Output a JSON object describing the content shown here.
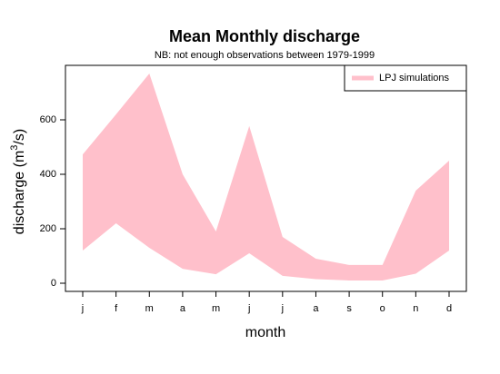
{
  "chart_data": {
    "type": "band",
    "title": "Mean Monthly discharge",
    "subtitle": "NB: not enough observations between 1979-1999",
    "xlabel": "month",
    "ylabel": {
      "start": "discharge (m",
      "sup": "3",
      "end": "/s)"
    },
    "categories": [
      "j",
      "f",
      "m",
      "a",
      "m",
      "j",
      "j",
      "a",
      "s",
      "o",
      "n",
      "d"
    ],
    "series": [
      {
        "name": "LPJ simulations",
        "color": "#ffc0cb",
        "upper": [
          473,
          620,
          770,
          400,
          190,
          577,
          170,
          90,
          67,
          67,
          340,
          450
        ],
        "lower": [
          120,
          220,
          130,
          53,
          33,
          110,
          27,
          15,
          10,
          10,
          35,
          120
        ]
      }
    ],
    "ylim": [
      -30,
      800
    ],
    "yticks": [
      0,
      200,
      400,
      600
    ],
    "legend": "top-right"
  }
}
